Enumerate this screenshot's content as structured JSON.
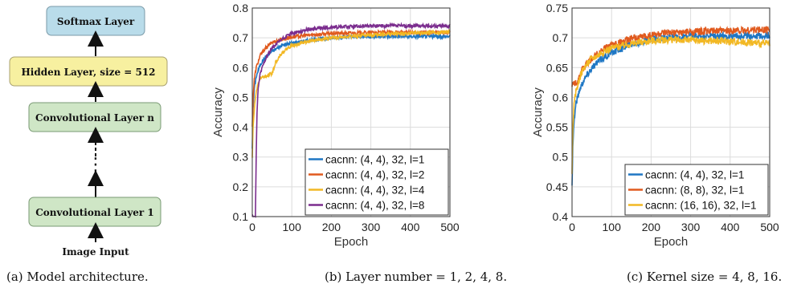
{
  "architecture": {
    "boxes": [
      {
        "label": "Softmax Layer",
        "color": "#b9dcea"
      },
      {
        "label": "Hidden Layer, size = 512",
        "color": "#f7f0a0"
      },
      {
        "label": "Convolutional Layer n",
        "color": "#cfe6c6"
      },
      {
        "label": "Convolutional Layer 1",
        "color": "#cfe6c6"
      }
    ],
    "input_label": "Image Input",
    "ellipsis": "⋮"
  },
  "captions": {
    "a": "(a) Model architecture.",
    "b": "(b) Layer number = 1, 2, 4, 8.",
    "c": "(c) Kernel size = 4, 8, 16."
  },
  "chart_data": [
    {
      "type": "line",
      "xlabel": "Epoch",
      "ylabel": "Accuracy",
      "xlim": [
        0,
        500
      ],
      "ylim": [
        0.1,
        0.8
      ],
      "xticks": [
        "0",
        "100",
        "200",
        "300",
        "400",
        "500"
      ],
      "yticks": [
        "0.1",
        "0.2",
        "0.3",
        "0.4",
        "0.5",
        "0.6",
        "0.7",
        "0.8"
      ],
      "grid": true,
      "legend": "bottom-right",
      "series": [
        {
          "name": "cacnn: (4, 4), 32, l=1",
          "color": "#1f77c4",
          "x": [
            0,
            2,
            5,
            10,
            20,
            30,
            50,
            75,
            100,
            150,
            200,
            250,
            300,
            400,
            500
          ],
          "y": [
            0.33,
            0.46,
            0.53,
            0.57,
            0.61,
            0.63,
            0.655,
            0.675,
            0.683,
            0.693,
            0.7,
            0.703,
            0.705,
            0.705,
            0.705
          ]
        },
        {
          "name": "cacnn: (4, 4), 32, l=2",
          "color": "#e05a1e",
          "x": [
            0,
            2,
            5,
            10,
            20,
            30,
            50,
            75,
            100,
            150,
            200,
            250,
            300,
            400,
            500
          ],
          "y": [
            0.4,
            0.5,
            0.56,
            0.6,
            0.64,
            0.66,
            0.685,
            0.695,
            0.703,
            0.71,
            0.715,
            0.716,
            0.718,
            0.718,
            0.718
          ]
        },
        {
          "name": "cacnn: (4, 4), 32, l=4",
          "color": "#f2b824",
          "x": [
            0,
            2,
            5,
            10,
            15,
            20,
            30,
            40,
            50,
            60,
            75,
            100,
            150,
            200,
            250,
            300,
            400,
            500
          ],
          "y": [
            0.3,
            0.4,
            0.46,
            0.52,
            0.55,
            0.565,
            0.57,
            0.575,
            0.58,
            0.62,
            0.65,
            0.675,
            0.69,
            0.7,
            0.705,
            0.71,
            0.715,
            0.72
          ]
        },
        {
          "name": "cacnn: (4, 4), 32, l=8",
          "color": "#7b2d8e",
          "x": [
            0,
            5,
            8,
            10,
            12,
            15,
            20,
            30,
            40,
            50,
            75,
            100,
            150,
            200,
            250,
            300,
            400,
            500
          ],
          "y": [
            0.1,
            0.1,
            0.1,
            0.3,
            0.45,
            0.53,
            0.58,
            0.62,
            0.645,
            0.665,
            0.695,
            0.715,
            0.73,
            0.735,
            0.738,
            0.74,
            0.74,
            0.74
          ]
        }
      ]
    },
    {
      "type": "line",
      "xlabel": "Epoch",
      "ylabel": "Accuracy",
      "xlim": [
        0,
        500
      ],
      "ylim": [
        0.4,
        0.75
      ],
      "xticks": [
        "0",
        "100",
        "200",
        "300",
        "400",
        "500"
      ],
      "yticks": [
        "0.4",
        "0.45",
        "0.5",
        "0.55",
        "0.6",
        "0.65",
        "0.7",
        "0.75"
      ],
      "grid": true,
      "legend": "bottom-right",
      "series": [
        {
          "name": "cacnn: (4, 4), 32, l=1",
          "color": "#1f77c4",
          "x": [
            0,
            2,
            5,
            10,
            20,
            30,
            50,
            75,
            100,
            150,
            200,
            250,
            300,
            400,
            500
          ],
          "y": [
            0.45,
            0.52,
            0.56,
            0.59,
            0.615,
            0.63,
            0.65,
            0.665,
            0.675,
            0.69,
            0.697,
            0.7,
            0.702,
            0.703,
            0.704
          ]
        },
        {
          "name": "cacnn: (8, 8), 32, l=1",
          "color": "#e05a1e",
          "x": [
            0,
            2,
            5,
            10,
            15,
            20,
            30,
            50,
            75,
            100,
            150,
            200,
            250,
            300,
            400,
            500
          ],
          "y": [
            0.62,
            0.623,
            0.625,
            0.625,
            0.63,
            0.64,
            0.65,
            0.665,
            0.68,
            0.688,
            0.698,
            0.705,
            0.708,
            0.71,
            0.712,
            0.714
          ]
        },
        {
          "name": "cacnn: (16, 16), 32, l=1",
          "color": "#f2b824",
          "x": [
            0,
            2,
            5,
            10,
            20,
            30,
            50,
            75,
            100,
            150,
            200,
            250,
            300,
            400,
            500
          ],
          "y": [
            0.47,
            0.55,
            0.585,
            0.61,
            0.635,
            0.65,
            0.665,
            0.675,
            0.683,
            0.69,
            0.695,
            0.697,
            0.696,
            0.694,
            0.69
          ]
        }
      ]
    }
  ]
}
